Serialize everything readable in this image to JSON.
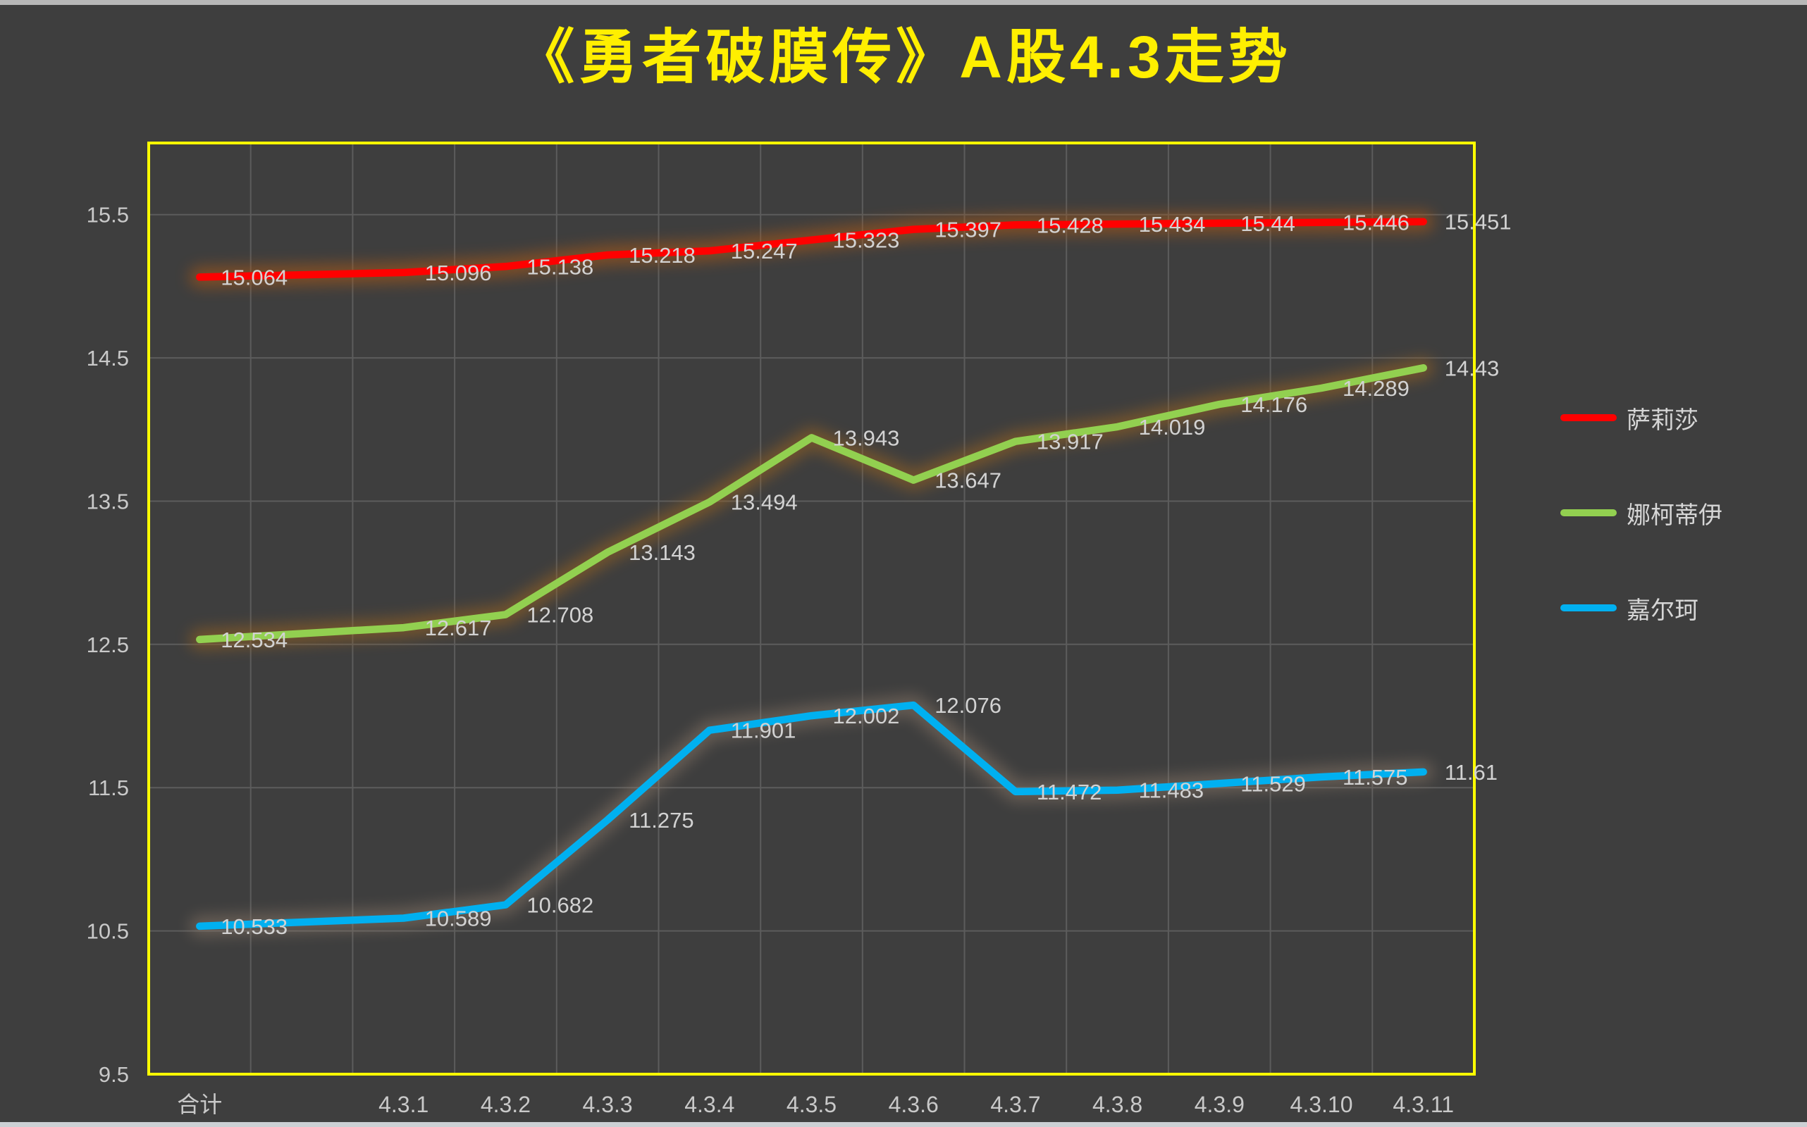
{
  "chart_data": {
    "type": "line",
    "title": "《勇者破膜传》A股4.3走势",
    "categories": [
      "合计",
      "",
      "4.3.1",
      "4.3.2",
      "4.3.3",
      "4.3.4",
      "4.3.5",
      "4.3.6",
      "4.3.7",
      "4.3.8",
      "4.3.9",
      "4.3.10",
      "4.3.11"
    ],
    "series": [
      {
        "name": "萨莉莎",
        "color": "#ff0000",
        "glow_color": "#b05a14",
        "values": [
          15.064,
          null,
          15.096,
          15.138,
          15.218,
          15.247,
          15.323,
          15.397,
          15.428,
          15.434,
          15.44,
          15.446,
          15.451
        ]
      },
      {
        "name": "娜柯蒂伊",
        "color": "#92d050",
        "glow_color": "#9c6420",
        "values": [
          12.534,
          null,
          12.617,
          12.708,
          13.143,
          13.494,
          13.943,
          13.647,
          13.917,
          14.019,
          14.176,
          14.289,
          14.43
        ]
      },
      {
        "name": "嘉尔珂",
        "color": "#00b0f0",
        "glow_color": "#94806e",
        "values": [
          10.533,
          null,
          10.589,
          10.682,
          11.275,
          11.901,
          12.002,
          12.076,
          11.472,
          11.483,
          11.529,
          11.575,
          11.61
        ]
      }
    ],
    "y_axis": {
      "min": 9.5,
      "max": 16.0,
      "tick_step": 1.0,
      "ticks": [
        15.5,
        14.5,
        13.5,
        12.5,
        11.5,
        10.5,
        9.5
      ]
    },
    "x_axis": {
      "label_row_y": "below plot"
    },
    "legend_position": "right",
    "grid": true,
    "style": {
      "background": "#3e3e3e",
      "plot_border": "#ffff00",
      "gridline": "#5c5c5c",
      "title_color": "#ffef00",
      "label_color": "#d2d2d2",
      "axis_text_color": "#c9c9c9"
    }
  }
}
